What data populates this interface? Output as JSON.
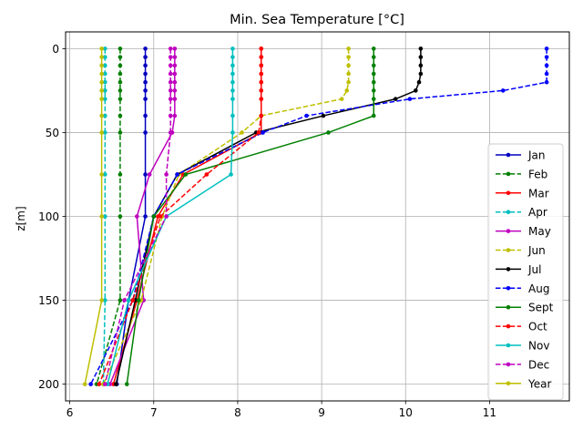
{
  "chart_data": {
    "type": "line",
    "title": "Min. Sea Temperature [°C]",
    "xlabel": "",
    "ylabel": "z[m]",
    "xlim": [
      5.95,
      11.95
    ],
    "ylim": [
      210,
      -10
    ],
    "y_inverted": true,
    "grid": true,
    "legend_position": "lower-right",
    "x_ticks": [
      6,
      7,
      8,
      9,
      10,
      11
    ],
    "y_ticks": [
      0,
      50,
      100,
      150,
      200
    ],
    "depths": [
      0,
      5,
      10,
      15,
      20,
      25,
      30,
      40,
      50,
      75,
      100,
      150,
      200
    ],
    "series": [
      {
        "name": "Jan",
        "color": "#0000bf",
        "dash": "solid",
        "values": [
          6.9,
          6.9,
          6.9,
          6.9,
          6.9,
          6.9,
          6.9,
          6.9,
          6.9,
          6.9,
          6.9,
          6.7,
          6.56
        ]
      },
      {
        "name": "Feb",
        "color": "#007f00",
        "dash": "dashed",
        "values": [
          6.6,
          6.6,
          6.6,
          6.6,
          6.6,
          6.6,
          6.6,
          6.6,
          6.6,
          6.6,
          6.6,
          6.6,
          6.32
        ]
      },
      {
        "name": "Mar",
        "color": "#ff0000",
        "dash": "solid",
        "values": [
          8.28,
          8.28,
          8.28,
          8.28,
          8.28,
          8.28,
          8.28,
          8.28,
          8.28,
          7.35,
          7.05,
          6.8,
          6.52
        ]
      },
      {
        "name": "Apr",
        "color": "#00bfbf",
        "dash": "dashed",
        "values": [
          6.42,
          6.42,
          6.42,
          6.42,
          6.42,
          6.42,
          6.42,
          6.42,
          6.42,
          6.42,
          6.42,
          6.42,
          6.4
        ]
      },
      {
        "name": "May",
        "color": "#bf00bf",
        "dash": "solid",
        "values": [
          7.25,
          7.25,
          7.25,
          7.25,
          7.25,
          7.25,
          7.25,
          7.25,
          7.22,
          6.95,
          6.8,
          6.88,
          6.48
        ]
      },
      {
        "name": "Jun",
        "color": "#bfbf00",
        "dash": "dashed",
        "values": [
          9.32,
          9.32,
          9.32,
          9.32,
          9.32,
          9.3,
          9.24,
          8.28,
          8.05,
          7.3,
          7.1,
          6.85,
          6.4
        ]
      },
      {
        "name": "Jul",
        "color": "#000000",
        "dash": "solid",
        "values": [
          10.18,
          10.18,
          10.18,
          10.18,
          10.16,
          10.12,
          9.88,
          9.02,
          8.22,
          7.28,
          7.0,
          6.78,
          6.55
        ]
      },
      {
        "name": "Aug",
        "color": "#0000ff",
        "dash": "dashed",
        "values": [
          11.68,
          11.68,
          11.68,
          11.68,
          11.68,
          11.16,
          10.05,
          8.82,
          8.3,
          7.28,
          7.0,
          6.75,
          6.25
        ]
      },
      {
        "name": "Sept",
        "color": "#008000",
        "dash": "solid",
        "values": [
          9.62,
          9.62,
          9.62,
          9.62,
          9.62,
          9.62,
          9.62,
          9.62,
          9.08,
          7.38,
          7.0,
          6.82,
          6.68
        ]
      },
      {
        "name": "Oct",
        "color": "#ff0000",
        "dash": "dashed",
        "values": [
          8.28,
          8.28,
          8.28,
          8.28,
          8.28,
          8.28,
          8.28,
          8.28,
          8.25,
          7.63,
          7.08,
          6.75,
          6.35
        ]
      },
      {
        "name": "Nov",
        "color": "#00bfbf",
        "dash": "solid",
        "values": [
          7.94,
          7.94,
          7.94,
          7.94,
          7.94,
          7.94,
          7.94,
          7.94,
          7.94,
          7.92,
          7.15,
          6.7,
          6.45
        ]
      },
      {
        "name": "Dec",
        "color": "#bf00bf",
        "dash": "dashed",
        "values": [
          7.2,
          7.2,
          7.2,
          7.2,
          7.2,
          7.2,
          7.2,
          7.2,
          7.2,
          7.15,
          7.15,
          6.65,
          6.42
        ]
      },
      {
        "name": "Year",
        "color": "#bfbf00",
        "dash": "solid",
        "values": [
          6.38,
          6.38,
          6.38,
          6.38,
          6.38,
          6.38,
          6.38,
          6.38,
          6.38,
          6.38,
          6.38,
          6.38,
          6.18
        ]
      }
    ]
  }
}
